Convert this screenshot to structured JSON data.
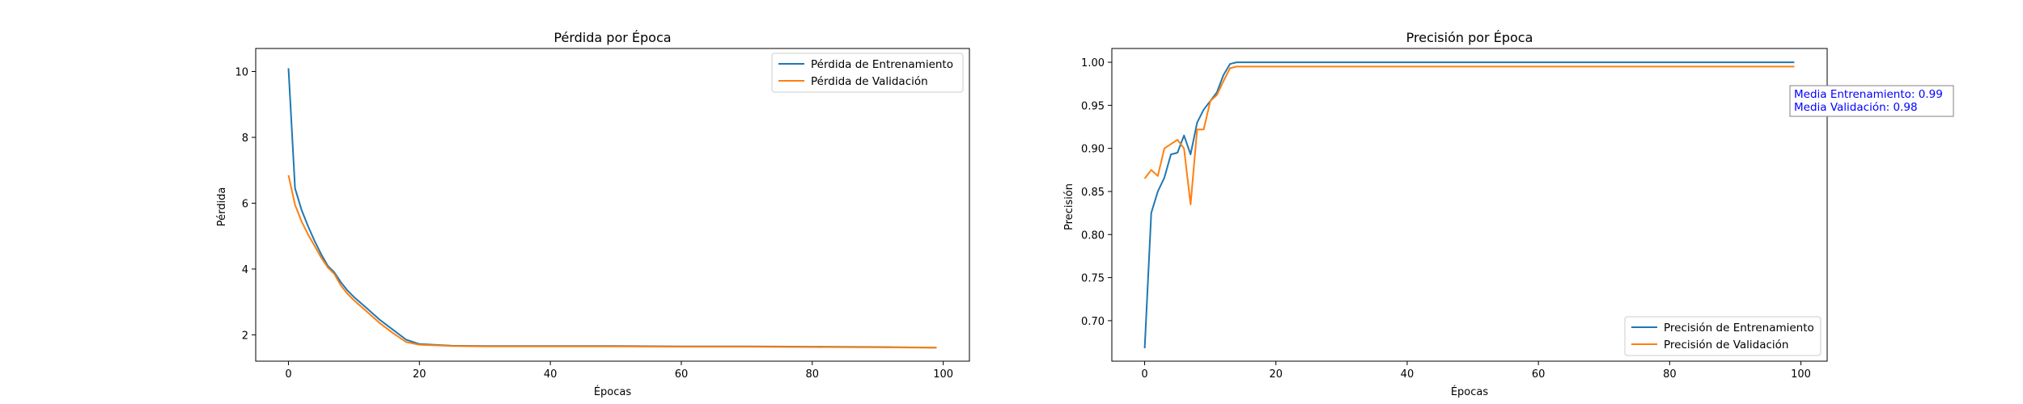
{
  "chart_data": [
    {
      "type": "line",
      "title": "Pérdida por Época",
      "xlabel": "Épocas",
      "ylabel": "Pérdida",
      "xlim": [
        -5,
        104
      ],
      "ylim": [
        1.2,
        10.7
      ],
      "xticks": [
        0,
        20,
        40,
        60,
        80,
        100
      ],
      "yticks": [
        2,
        4,
        6,
        8,
        10
      ],
      "xtick_labels": [
        "0",
        "20",
        "40",
        "60",
        "80",
        "100"
      ],
      "ytick_labels": [
        "2",
        "4",
        "6",
        "8",
        "10"
      ],
      "grid": false,
      "legend_position": "upper right",
      "series": [
        {
          "name": "Pérdida de Entrenamiento",
          "color": "#1f77b4",
          "x": [
            0,
            1,
            2,
            3,
            4,
            5,
            6,
            7,
            8,
            9,
            10,
            12,
            14,
            16,
            18,
            20,
            25,
            30,
            40,
            50,
            60,
            70,
            80,
            90,
            99
          ],
          "y": [
            10.1,
            6.45,
            5.8,
            5.3,
            4.85,
            4.45,
            4.1,
            3.9,
            3.6,
            3.35,
            3.15,
            2.8,
            2.45,
            2.15,
            1.85,
            1.72,
            1.67,
            1.66,
            1.66,
            1.66,
            1.65,
            1.65,
            1.64,
            1.63,
            1.61
          ]
        },
        {
          "name": "Pérdida de Validación",
          "color": "#ff7f0e",
          "x": [
            0,
            1,
            2,
            3,
            4,
            5,
            6,
            7,
            8,
            9,
            10,
            12,
            14,
            16,
            18,
            20,
            25,
            30,
            40,
            50,
            60,
            70,
            80,
            90,
            99
          ],
          "y": [
            6.85,
            5.95,
            5.45,
            5.05,
            4.7,
            4.35,
            4.05,
            3.85,
            3.5,
            3.25,
            3.05,
            2.7,
            2.35,
            2.05,
            1.78,
            1.7,
            1.66,
            1.65,
            1.65,
            1.65,
            1.64,
            1.64,
            1.63,
            1.62,
            1.61
          ]
        }
      ]
    },
    {
      "type": "line",
      "title": "Precisión por Época",
      "xlabel": "Épocas",
      "ylabel": "Precisión",
      "xlim": [
        -5,
        104
      ],
      "ylim": [
        0.653,
        1.016
      ],
      "xticks": [
        0,
        20,
        40,
        60,
        80,
        100
      ],
      "yticks": [
        0.7,
        0.75,
        0.8,
        0.85,
        0.9,
        0.95,
        1.0
      ],
      "xtick_labels": [
        "0",
        "20",
        "40",
        "60",
        "80",
        "100"
      ],
      "ytick_labels": [
        "0.70",
        "0.75",
        "0.80",
        "0.85",
        "0.90",
        "0.95",
        "1.00"
      ],
      "grid": false,
      "legend_position": "lower right",
      "series": [
        {
          "name": "Precisión de Entrenamiento",
          "color": "#1f77b4",
          "x": [
            0,
            1,
            2,
            3,
            4,
            5,
            6,
            7,
            8,
            9,
            10,
            11,
            12,
            13,
            14,
            15,
            20,
            40,
            60,
            80,
            99
          ],
          "y": [
            0.668,
            0.825,
            0.85,
            0.866,
            0.893,
            0.895,
            0.915,
            0.893,
            0.93,
            0.945,
            0.955,
            0.965,
            0.985,
            0.998,
            1.0,
            1.0,
            1.0,
            1.0,
            1.0,
            1.0,
            1.0
          ]
        },
        {
          "name": "Precisión de Validación",
          "color": "#ff7f0e",
          "x": [
            0,
            1,
            2,
            3,
            4,
            5,
            6,
            7,
            8,
            9,
            10,
            11,
            12,
            13,
            14,
            15,
            20,
            40,
            60,
            80,
            99
          ],
          "y": [
            0.865,
            0.875,
            0.868,
            0.9,
            0.905,
            0.91,
            0.9,
            0.835,
            0.922,
            0.922,
            0.955,
            0.962,
            0.978,
            0.993,
            0.995,
            0.995,
            0.995,
            0.995,
            0.995,
            0.995,
            0.995
          ]
        }
      ],
      "annotation": {
        "line1": "Media Entrenamiento: 0.99",
        "line2": "Media Validación: 0.98",
        "color": "#0000ff"
      }
    }
  ]
}
